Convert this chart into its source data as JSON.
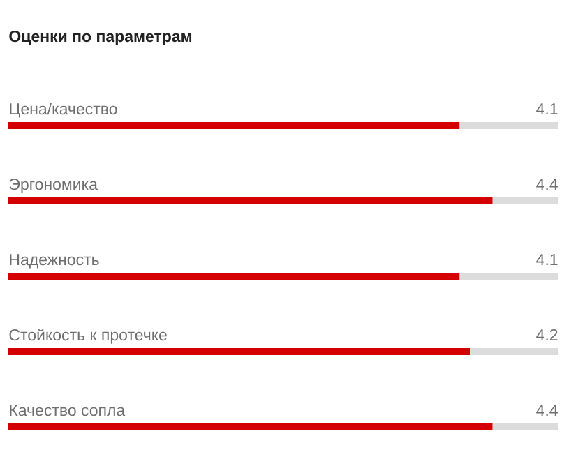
{
  "chart_data": {
    "type": "bar",
    "orientation": "horizontal",
    "title": "Оценки по параметрам",
    "categories": [
      "Цена/качество",
      "Эргономика",
      "Надежность",
      "Стойкость к протечке",
      "Качество сопла"
    ],
    "values": [
      4.1,
      4.4,
      4.1,
      4.2,
      4.4
    ],
    "color": "#d40000",
    "xlim": [
      0,
      5
    ],
    "data_labels": true
  }
}
